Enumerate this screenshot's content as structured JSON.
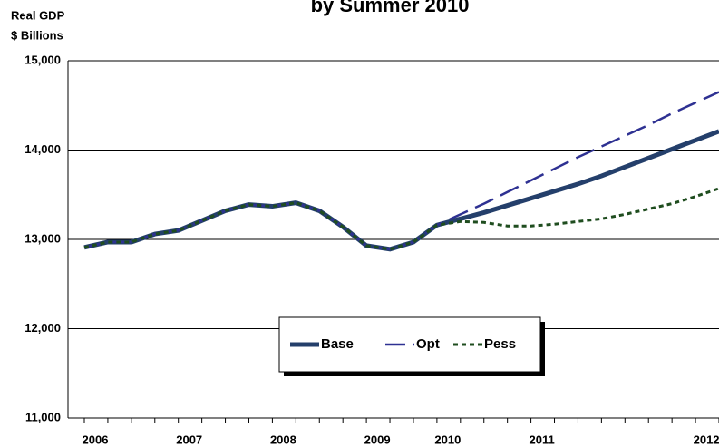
{
  "chart_data": {
    "type": "line",
    "title": "by Summer 2010",
    "y_label_lines": [
      "Real GDP",
      "$ Billions"
    ],
    "categories": [
      "2006",
      null,
      null,
      null,
      "2007",
      null,
      null,
      null,
      "2008",
      null,
      null,
      null,
      "2009",
      null,
      null,
      "2010",
      null,
      null,
      null,
      "2011",
      null,
      null,
      null,
      null,
      null,
      null,
      "2012",
      null
    ],
    "series": [
      {
        "name": "Base",
        "color": "#243f6b",
        "style": "solid",
        "width": 5,
        "values": [
          12910,
          12970,
          12970,
          13060,
          13100,
          13210,
          13320,
          13390,
          13370,
          13410,
          13320,
          13140,
          12930,
          12890,
          12970,
          13160,
          13230,
          13300,
          13380,
          13460,
          13540,
          13620,
          13710,
          13810,
          13910,
          14010,
          14110,
          14210
        ]
      },
      {
        "name": "Opt",
        "color": "#2e3192",
        "style": "dashed",
        "width": 2.5,
        "values": [
          12910,
          12970,
          12970,
          13060,
          13100,
          13210,
          13320,
          13390,
          13370,
          13410,
          13320,
          13140,
          12930,
          12890,
          12970,
          13160,
          13280,
          13400,
          13530,
          13660,
          13790,
          13920,
          14040,
          14160,
          14280,
          14410,
          14530,
          14650
        ]
      },
      {
        "name": "Pess",
        "color": "#1f4d1f",
        "style": "dotted",
        "width": 3,
        "values": [
          12910,
          12970,
          12970,
          13060,
          13100,
          13210,
          13320,
          13390,
          13370,
          13410,
          13320,
          13140,
          12930,
          12890,
          12970,
          13160,
          13200,
          13190,
          13150,
          13150,
          13170,
          13200,
          13230,
          13280,
          13340,
          13400,
          13480,
          13570
        ]
      }
    ],
    "ylim": [
      11000,
      15000
    ],
    "yticks": [
      {
        "value": 11000,
        "label": "11,000"
      },
      {
        "value": 12000,
        "label": "12,000"
      },
      {
        "value": 13000,
        "label": "13,000"
      },
      {
        "value": 14000,
        "label": "14,000"
      },
      {
        "value": 15000,
        "label": "15,000"
      }
    ],
    "grid": true
  }
}
